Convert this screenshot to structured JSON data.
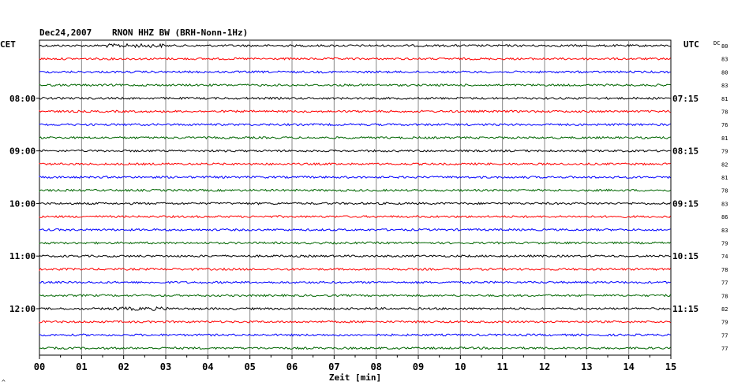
{
  "header": {
    "date": "Dec24,2007",
    "station": "RNON HHZ BW (BRH-Nonn-1Hz)"
  },
  "left_label": "CET",
  "right_label": "UTC",
  "dc_label": "DC",
  "xlabel": "Zeit [min]",
  "corner_mark": "^",
  "chart_data": {
    "type": "line",
    "title": "Dec24,2007   RNON HHZ BW (BRH-Nonn-1Hz)",
    "xlabel": "Zeit [min]",
    "xlim": [
      0,
      15
    ],
    "x_ticks": [
      "00",
      "01",
      "02",
      "03",
      "04",
      "05",
      "06",
      "07",
      "08",
      "09",
      "10",
      "11",
      "12",
      "13",
      "14",
      "15"
    ],
    "trace_colors": [
      "#000000",
      "#ff0000",
      "#0000ff",
      "#006600"
    ],
    "hour_labels_cet": [
      "08:00",
      "09:00",
      "10:00",
      "11:00",
      "12:00"
    ],
    "hour_labels_utc": [
      "07:15",
      "08:15",
      "09:15",
      "10:15",
      "11:15"
    ],
    "dc_values": [
      80,
      83,
      80,
      83,
      81,
      78,
      76,
      81,
      79,
      82,
      81,
      78,
      83,
      86,
      83,
      79,
      74,
      78,
      77,
      78,
      82,
      79,
      77,
      77
    ],
    "trace_count": 24,
    "grid": true
  }
}
